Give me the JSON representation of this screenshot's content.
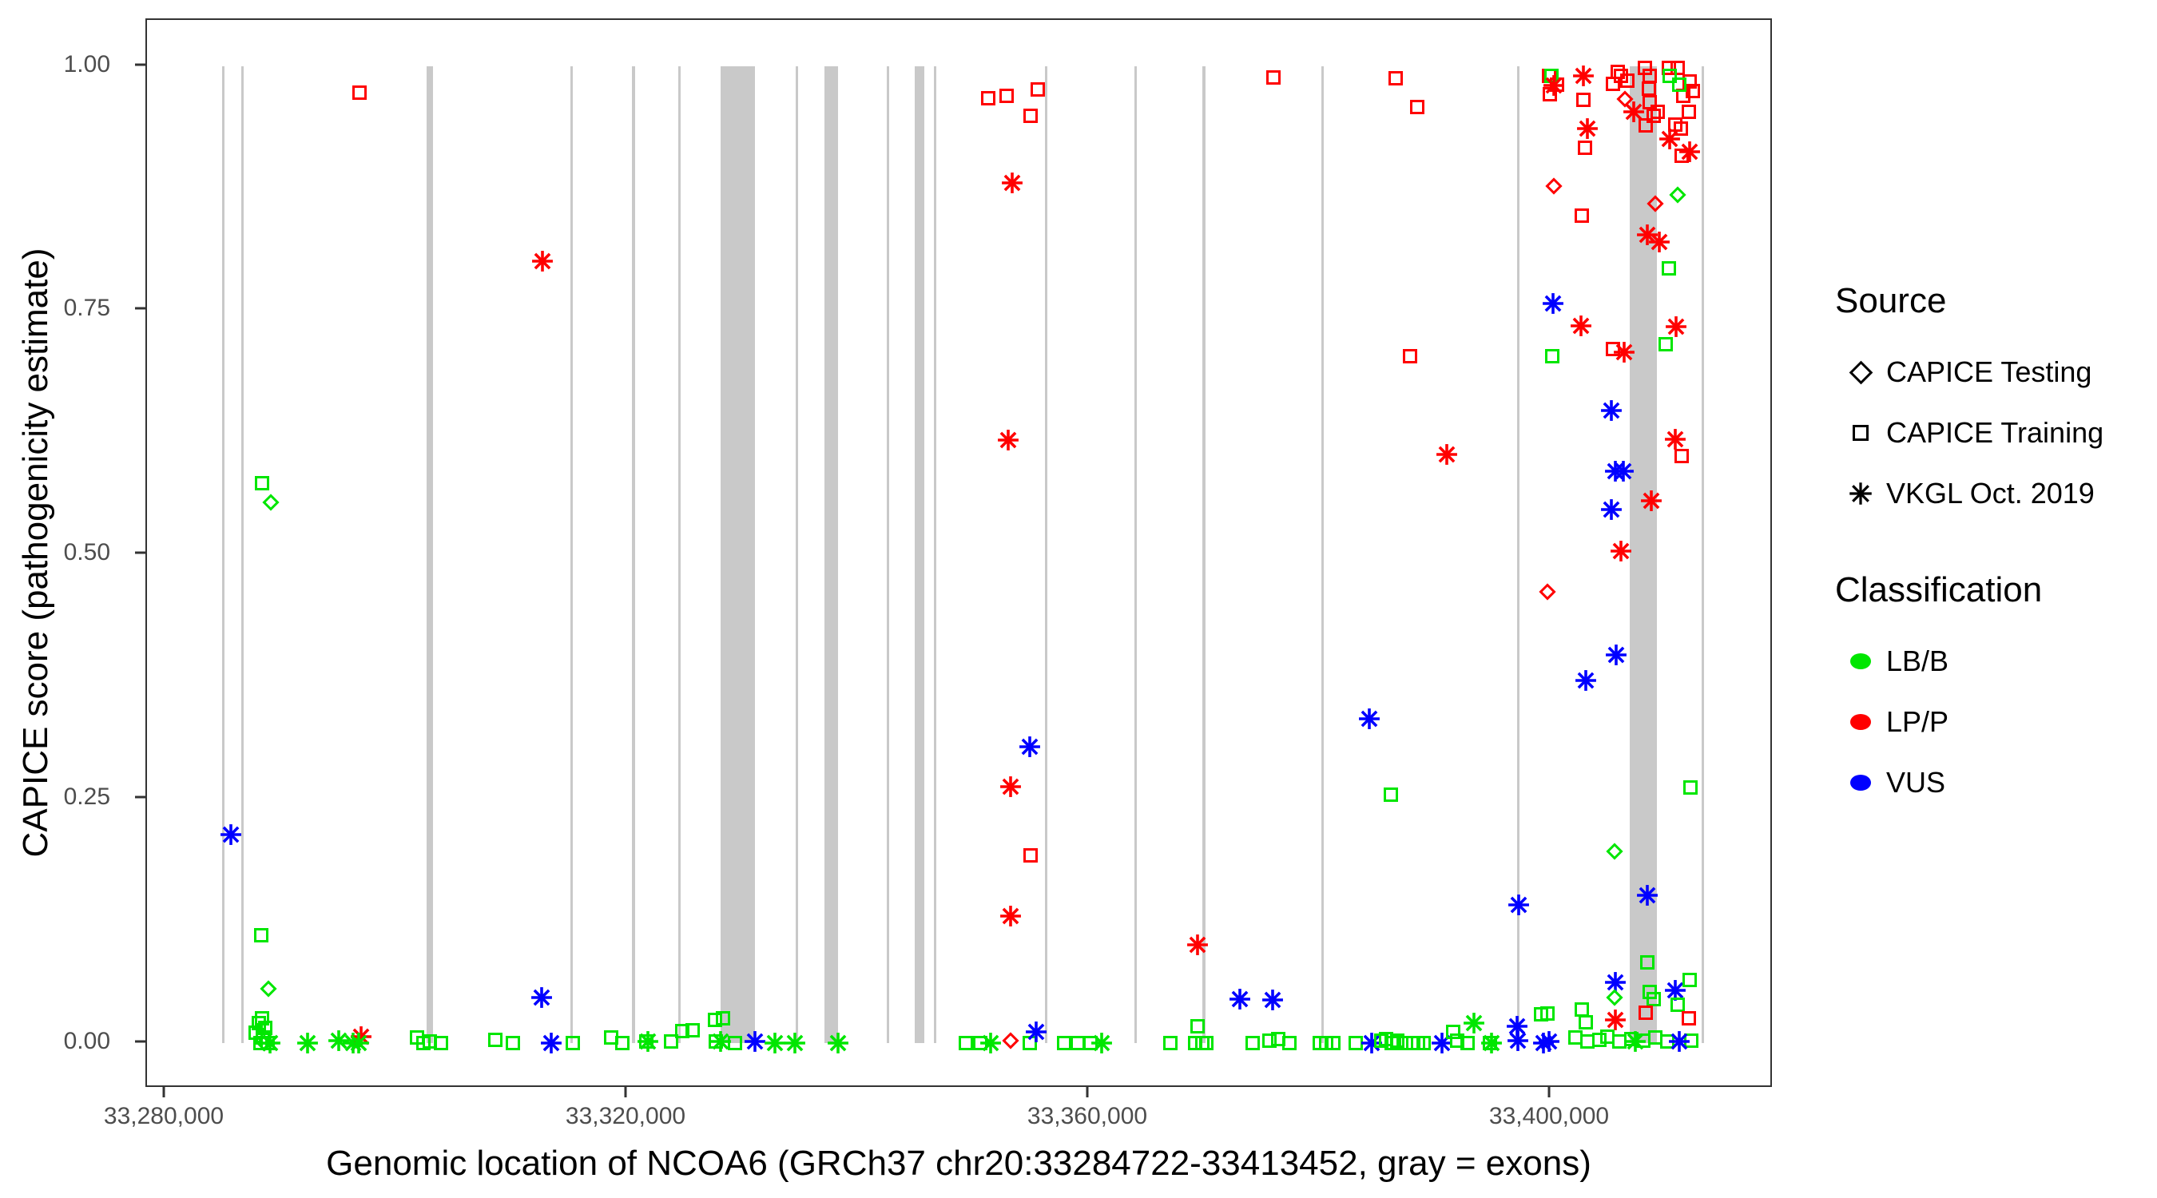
{
  "colors": {
    "lbb": "#00e600",
    "lpp": "#ff0000",
    "vus": "#0000ff",
    "exon": "#c9c9c9",
    "axis": "#333333",
    "tick_text": "#4d4d4d"
  },
  "legend": {
    "source": {
      "title": "Source",
      "items": [
        {
          "label": "CAPICE Testing",
          "shape": "diamond"
        },
        {
          "label": "CAPICE Training",
          "shape": "square"
        },
        {
          "label": "VKGL Oct. 2019",
          "shape": "asterisk"
        }
      ]
    },
    "classification": {
      "title": "Classification",
      "items": [
        {
          "label": "LB/B",
          "color": "#00e600"
        },
        {
          "label": "LP/P",
          "color": "#ff0000"
        },
        {
          "label": "VUS",
          "color": "#0000ff"
        }
      ]
    }
  },
  "chart_data": {
    "type": "scatter",
    "title": "",
    "xlabel": "Genomic location of NCOA6 (GRCh37 chr20:33284722-33413452, gray = exons)",
    "ylabel": "CAPICE score (pathogenicity estimate)",
    "xlim": [
      33278410,
      33419310
    ],
    "ylim": [
      -0.047,
      1.047
    ],
    "x_ticks": [
      {
        "value": 33280000,
        "label": "33,280,000"
      },
      {
        "value": 33320000,
        "label": "33,320,000"
      },
      {
        "value": 33360000,
        "label": "33,360,000"
      },
      {
        "value": 33400000,
        "label": "33,400,000"
      }
    ],
    "y_ticks": [
      {
        "value": 0.0,
        "label": "0.00"
      },
      {
        "value": 0.25,
        "label": "0.25"
      },
      {
        "value": 0.5,
        "label": "0.50"
      },
      {
        "value": 0.75,
        "label": "0.75"
      },
      {
        "value": 1.0,
        "label": "1.00"
      }
    ],
    "grid": false,
    "legend_position": "right",
    "exons_note": "gray = exons",
    "exons": [
      [
        33284910,
        33285120
      ],
      [
        33286570,
        33286780
      ],
      [
        33302630,
        33303180
      ],
      [
        33315090,
        33315240
      ],
      [
        33320420,
        33320690
      ],
      [
        33324430,
        33324580
      ],
      [
        33328100,
        33331070
      ],
      [
        33334600,
        33334810
      ],
      [
        33337090,
        33338270
      ],
      [
        33342490,
        33342640
      ],
      [
        33344910,
        33345740
      ],
      [
        33346570,
        33346720
      ],
      [
        33356190,
        33356400
      ],
      [
        33363950,
        33364160
      ],
      [
        33369830,
        33370110
      ],
      [
        33380140,
        33380290
      ],
      [
        33397090,
        33397240
      ],
      [
        33406850,
        33409200
      ],
      [
        33413080,
        33413290
      ]
    ],
    "point_format": [
      "genomic_position",
      "capice_score",
      "classification(g=LB/B,r=LP/P,b=VUS)",
      "source(s=CAPICE Training,d=CAPICE Testing,a=VKGL Oct. 2019)"
    ],
    "points": [
      [
        33285700,
        0.213,
        "b",
        "a"
      ],
      [
        33288400,
        0.573,
        "g",
        "s"
      ],
      [
        33289100,
        0.553,
        "g",
        "d"
      ],
      [
        33288300,
        0.11,
        "g",
        "s"
      ],
      [
        33288900,
        0.055,
        "g",
        "d"
      ],
      [
        33287800,
        0.01,
        "g",
        "s"
      ],
      [
        33288100,
        0.02,
        "g",
        "s"
      ],
      [
        33288450,
        0.005,
        "g",
        "s"
      ],
      [
        33288650,
        0.015,
        "g",
        "s"
      ],
      [
        33288860,
        0.0,
        "g",
        "s"
      ],
      [
        33288400,
        0.025,
        "g",
        "s"
      ],
      [
        33288580,
        0.0,
        "g",
        "d"
      ],
      [
        33289070,
        0.0,
        "g",
        "a"
      ],
      [
        33288200,
        0.0,
        "g",
        "s"
      ],
      [
        33292300,
        0.0,
        "g",
        "a"
      ],
      [
        33295000,
        0.002,
        "g",
        "a"
      ],
      [
        33296260,
        0.0,
        "g",
        "a"
      ],
      [
        33296950,
        0.006,
        "r",
        "a"
      ],
      [
        33296750,
        0.0,
        "g",
        "a"
      ],
      [
        33296800,
        0.973,
        "r",
        "s"
      ],
      [
        33301800,
        0.005,
        "g",
        "s"
      ],
      [
        33302350,
        0.0,
        "g",
        "s"
      ],
      [
        33302900,
        0.001,
        "g",
        "s"
      ],
      [
        33303900,
        0.0,
        "g",
        "s"
      ],
      [
        33308600,
        0.003,
        "g",
        "s"
      ],
      [
        33310100,
        0.0,
        "g",
        "s"
      ],
      [
        33312600,
        0.046,
        "b",
        "a"
      ],
      [
        33313400,
        0.0,
        "b",
        "a"
      ],
      [
        33312660,
        0.8,
        "r",
        "a"
      ],
      [
        33315300,
        0.0,
        "g",
        "s"
      ],
      [
        33318600,
        0.005,
        "g",
        "s"
      ],
      [
        33319580,
        0.0,
        "g",
        "s"
      ],
      [
        33321660,
        0.001,
        "g",
        "s"
      ],
      [
        33321800,
        0.001,
        "g",
        "a"
      ],
      [
        33323800,
        0.001,
        "g",
        "s"
      ],
      [
        33324770,
        0.012,
        "g",
        "s"
      ],
      [
        33325670,
        0.013,
        "g",
        "s"
      ],
      [
        33327610,
        0.023,
        "g",
        "s"
      ],
      [
        33327650,
        0.001,
        "g",
        "s"
      ],
      [
        33328300,
        0.025,
        "g",
        "s"
      ],
      [
        33328100,
        0.001,
        "g",
        "a"
      ],
      [
        33329340,
        0.0,
        "g",
        "s"
      ],
      [
        33331070,
        0.001,
        "b",
        "a"
      ],
      [
        33332800,
        0.0,
        "g",
        "a"
      ],
      [
        33334530,
        0.0,
        "g",
        "a"
      ],
      [
        33338270,
        0.0,
        "g",
        "a"
      ],
      [
        33349340,
        0.0,
        "g",
        "s"
      ],
      [
        33350580,
        0.0,
        "g",
        "s"
      ],
      [
        33351480,
        0.0,
        "g",
        "a"
      ],
      [
        33353210,
        0.002,
        "r",
        "d"
      ],
      [
        33354870,
        0.0,
        "g",
        "s"
      ],
      [
        33355430,
        0.011,
        "b",
        "a"
      ],
      [
        33357850,
        0.0,
        "g",
        "s"
      ],
      [
        33359030,
        0.0,
        "g",
        "s"
      ],
      [
        33360140,
        0.0,
        "g",
        "s"
      ],
      [
        33361100,
        0.0,
        "g",
        "a"
      ],
      [
        33351280,
        0.967,
        "r",
        "s"
      ],
      [
        33352870,
        0.969,
        "r",
        "s"
      ],
      [
        33355570,
        0.976,
        "r",
        "s"
      ],
      [
        33354940,
        0.949,
        "r",
        "s"
      ],
      [
        33353350,
        0.88,
        "r",
        "a"
      ],
      [
        33353010,
        0.617,
        "r",
        "a"
      ],
      [
        33354870,
        0.303,
        "b",
        "a"
      ],
      [
        33353210,
        0.262,
        "r",
        "a"
      ],
      [
        33354940,
        0.192,
        "r",
        "s"
      ],
      [
        33353210,
        0.13,
        "r",
        "a"
      ],
      [
        33369410,
        0.1,
        "r",
        "a"
      ],
      [
        33375980,
        0.988,
        "r",
        "s"
      ],
      [
        33367050,
        0.0,
        "g",
        "s"
      ],
      [
        33369200,
        0.0,
        "g",
        "s"
      ],
      [
        33369410,
        0.017,
        "g",
        "s"
      ],
      [
        33369830,
        0.0,
        "g",
        "s"
      ],
      [
        33370170,
        0.0,
        "g",
        "s"
      ],
      [
        33373080,
        0.045,
        "b",
        "a"
      ],
      [
        33375910,
        0.044,
        "b",
        "a"
      ],
      [
        33374180,
        0.0,
        "g",
        "s"
      ],
      [
        33375630,
        0.002,
        "g",
        "s"
      ],
      [
        33376390,
        0.004,
        "g",
        "s"
      ],
      [
        33377360,
        0.0,
        "g",
        "s"
      ],
      [
        33379990,
        0.0,
        "g",
        "s"
      ],
      [
        33380540,
        0.0,
        "g",
        "s"
      ],
      [
        33381170,
        0.0,
        "g",
        "s"
      ],
      [
        33383100,
        0.0,
        "g",
        "s"
      ],
      [
        33384490,
        0.0,
        "b",
        "a"
      ],
      [
        33385320,
        0.002,
        "g",
        "s"
      ],
      [
        33385740,
        0.004,
        "g",
        "s"
      ],
      [
        33386220,
        0.0,
        "g",
        "s"
      ],
      [
        33386710,
        0.002,
        "g",
        "s"
      ],
      [
        33387470,
        0.0,
        "g",
        "s"
      ],
      [
        33388090,
        0.0,
        "g",
        "s"
      ],
      [
        33388510,
        0.0,
        "g",
        "s"
      ],
      [
        33388990,
        0.0,
        "g",
        "s"
      ],
      [
        33390580,
        0.0,
        "b",
        "a"
      ],
      [
        33391550,
        0.011,
        "g",
        "s"
      ],
      [
        33391900,
        0.002,
        "g",
        "s"
      ],
      [
        33392800,
        0.0,
        "g",
        "s"
      ],
      [
        33393350,
        0.02,
        "g",
        "a"
      ],
      [
        33394730,
        0.0,
        "g",
        "s"
      ],
      [
        33394870,
        0.0,
        "g",
        "a"
      ],
      [
        33397090,
        0.017,
        "b",
        "a"
      ],
      [
        33397160,
        0.002,
        "b",
        "a"
      ],
      [
        33399370,
        0.0,
        "b",
        "a"
      ],
      [
        33399160,
        0.029,
        "g",
        "s"
      ],
      [
        33399850,
        0.99,
        "r",
        "s"
      ],
      [
        33400550,
        0.981,
        "r",
        "s"
      ],
      [
        33399920,
        0.971,
        "r",
        "s"
      ],
      [
        33402830,
        0.965,
        "r",
        "s"
      ],
      [
        33402970,
        0.916,
        "r",
        "s"
      ],
      [
        33405390,
        0.982,
        "r",
        "s"
      ],
      [
        33405810,
        0.994,
        "r",
        "s"
      ],
      [
        33406080,
        0.99,
        "r",
        "s"
      ],
      [
        33406640,
        0.985,
        "r",
        "s"
      ],
      [
        33408160,
        0.998,
        "r",
        "s"
      ],
      [
        33408570,
        0.99,
        "r",
        "s"
      ],
      [
        33408500,
        0.977,
        "r",
        "s"
      ],
      [
        33408570,
        0.963,
        "r",
        "s"
      ],
      [
        33408920,
        0.949,
        "r",
        "s"
      ],
      [
        33409270,
        0.953,
        "r",
        "s"
      ],
      [
        33408230,
        0.939,
        "r",
        "s"
      ],
      [
        33410230,
        0.998,
        "r",
        "s"
      ],
      [
        33410990,
        0.998,
        "r",
        "s"
      ],
      [
        33412030,
        0.984,
        "r",
        "s"
      ],
      [
        33412300,
        0.974,
        "r",
        "s"
      ],
      [
        33411480,
        0.969,
        "r",
        "s"
      ],
      [
        33411960,
        0.953,
        "r",
        "s"
      ],
      [
        33410780,
        0.94,
        "r",
        "s"
      ],
      [
        33411270,
        0.936,
        "r",
        "s"
      ],
      [
        33411340,
        0.908,
        "r",
        "s"
      ],
      [
        33402690,
        0.847,
        "r",
        "s"
      ],
      [
        33400060,
        0.99,
        "g",
        "s"
      ],
      [
        33410300,
        0.99,
        "g",
        "s"
      ],
      [
        33411130,
        0.981,
        "g",
        "s"
      ],
      [
        33400270,
        0.98,
        "r",
        "a"
      ],
      [
        33402830,
        0.99,
        "r",
        "a"
      ],
      [
        33403180,
        0.936,
        "r",
        "a"
      ],
      [
        33407190,
        0.953,
        "r",
        "a"
      ],
      [
        33410300,
        0.925,
        "r",
        "a"
      ],
      [
        33412030,
        0.912,
        "r",
        "a"
      ],
      [
        33408370,
        0.827,
        "r",
        "a"
      ],
      [
        33409410,
        0.82,
        "r",
        "a"
      ],
      [
        33406430,
        0.966,
        "r",
        "d"
      ],
      [
        33400270,
        0.877,
        "r",
        "d"
      ],
      [
        33409060,
        0.859,
        "r",
        "d"
      ],
      [
        33410990,
        0.868,
        "g",
        "d"
      ],
      [
        33386570,
        0.987,
        "r",
        "s"
      ],
      [
        33388440,
        0.958,
        "r",
        "s"
      ],
      [
        33387810,
        0.703,
        "r",
        "s"
      ],
      [
        33390990,
        0.602,
        "r",
        "a"
      ],
      [
        33400200,
        0.757,
        "b",
        "a"
      ],
      [
        33402620,
        0.734,
        "r",
        "a"
      ],
      [
        33400130,
        0.703,
        "g",
        "s"
      ],
      [
        33405390,
        0.71,
        "r",
        "s"
      ],
      [
        33406360,
        0.707,
        "r",
        "a"
      ],
      [
        33409960,
        0.715,
        "g",
        "s"
      ],
      [
        33410850,
        0.733,
        "r",
        "a"
      ],
      [
        33410230,
        0.793,
        "g",
        "s"
      ],
      [
        33405250,
        0.647,
        "b",
        "a"
      ],
      [
        33410780,
        0.618,
        "r",
        "a"
      ],
      [
        33411340,
        0.601,
        "r",
        "s"
      ],
      [
        33405600,
        0.585,
        "b",
        "a"
      ],
      [
        33406290,
        0.585,
        "b",
        "a"
      ],
      [
        33408710,
        0.555,
        "r",
        "a"
      ],
      [
        33405250,
        0.546,
        "b",
        "a"
      ],
      [
        33406080,
        0.503,
        "r",
        "a"
      ],
      [
        33399710,
        0.462,
        "r",
        "d"
      ],
      [
        33405670,
        0.397,
        "b",
        "a"
      ],
      [
        33403040,
        0.371,
        "b",
        "a"
      ],
      [
        33384290,
        0.332,
        "b",
        "a"
      ],
      [
        33386150,
        0.254,
        "g",
        "s"
      ],
      [
        33412100,
        0.261,
        "g",
        "s"
      ],
      [
        33405530,
        0.196,
        "g",
        "d"
      ],
      [
        33408370,
        0.151,
        "b",
        "a"
      ],
      [
        33397230,
        0.141,
        "b",
        "a"
      ],
      [
        33408370,
        0.082,
        "g",
        "s"
      ],
      [
        33405600,
        0.062,
        "b",
        "a"
      ],
      [
        33405530,
        0.046,
        "g",
        "d"
      ],
      [
        33402690,
        0.034,
        "g",
        "s"
      ],
      [
        33399710,
        0.03,
        "g",
        "s"
      ],
      [
        33408570,
        0.052,
        "g",
        "s"
      ],
      [
        33408920,
        0.045,
        "g",
        "s"
      ],
      [
        33410780,
        0.054,
        "b",
        "a"
      ],
      [
        33412030,
        0.064,
        "g",
        "s"
      ],
      [
        33410990,
        0.039,
        "g",
        "s"
      ],
      [
        33408230,
        0.031,
        "r",
        "s"
      ],
      [
        33411960,
        0.025,
        "r",
        "s"
      ],
      [
        33405600,
        0.023,
        "r",
        "a"
      ],
      [
        33403040,
        0.021,
        "g",
        "s"
      ],
      [
        33399850,
        0.001,
        "b",
        "a"
      ],
      [
        33402140,
        0.005,
        "g",
        "s"
      ],
      [
        33403180,
        0.001,
        "g",
        "s"
      ],
      [
        33404220,
        0.003,
        "g",
        "s"
      ],
      [
        33404910,
        0.006,
        "g",
        "s"
      ],
      [
        33405950,
        0.001,
        "g",
        "s"
      ],
      [
        33406990,
        0.004,
        "g",
        "s"
      ],
      [
        33408020,
        0.002,
        "g",
        "s"
      ],
      [
        33409060,
        0.005,
        "g",
        "s"
      ],
      [
        33410090,
        0.001,
        "g",
        "s"
      ],
      [
        33412170,
        0.002,
        "g",
        "s"
      ],
      [
        33407330,
        0.001,
        "g",
        "a"
      ],
      [
        33411130,
        0.001,
        "b",
        "a"
      ]
    ]
  }
}
